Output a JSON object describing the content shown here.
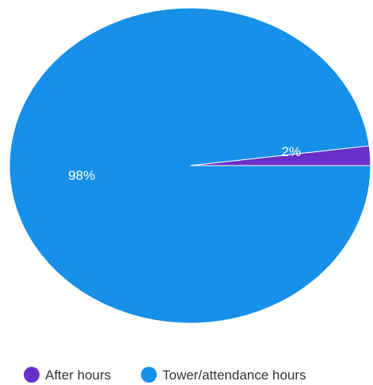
{
  "chart_data": {
    "type": "pie",
    "title": "",
    "slices": [
      {
        "name": "After hours",
        "value": 2,
        "label": "2%",
        "color": "#6a2fc8"
      },
      {
        "name": "Tower/attendance hours",
        "value": 98,
        "label": "98%",
        "color": "#1690e8"
      }
    ],
    "legend_position": "bottom"
  }
}
